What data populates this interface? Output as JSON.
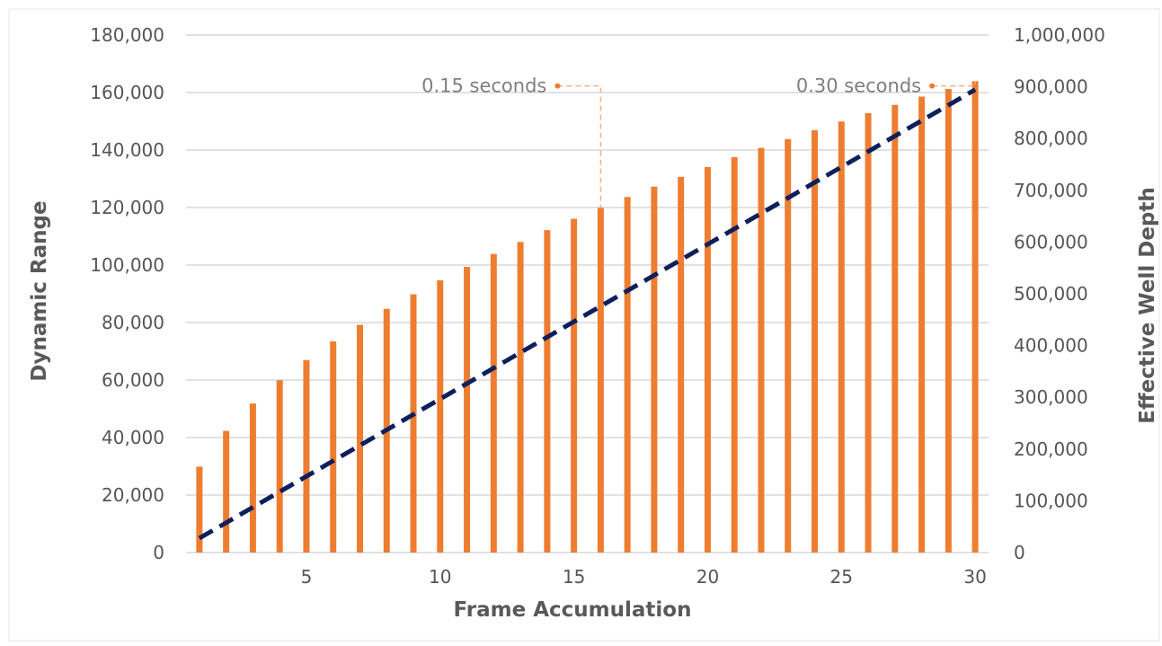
{
  "chart_data": {
    "type": "bar",
    "xlabel": "Frame Accumulation",
    "ylabel": "Dynamic Range",
    "y2label": "Effective Well Depth",
    "xlim": [
      0.5,
      30.5
    ],
    "ylim": [
      0,
      180000
    ],
    "y2lim": [
      0,
      1000000
    ],
    "x_ticks": [
      5,
      10,
      15,
      20,
      25,
      30
    ],
    "x_tick_labels": [
      "5",
      "10",
      "15",
      "20",
      "25",
      "30"
    ],
    "y_ticks": [
      0,
      20000,
      40000,
      60000,
      80000,
      100000,
      120000,
      140000,
      160000,
      180000
    ],
    "y_tick_labels": [
      "0",
      "20,000",
      "40,000",
      "60,000",
      "80,000",
      "100,000",
      "120,000",
      "140,000",
      "160,000",
      "180,000"
    ],
    "y2_ticks": [
      0,
      100000,
      200000,
      300000,
      400000,
      500000,
      600000,
      700000,
      800000,
      900000,
      1000000
    ],
    "y2_tick_labels": [
      "0",
      "100,000",
      "200,000",
      "300,000",
      "400,000",
      "500,000",
      "600,000",
      "700,000",
      "800,000",
      "900,000",
      "1,000,000"
    ],
    "grid": true,
    "colors": {
      "bars": "#ed7d31",
      "line": "#0d1f5c",
      "grid": "#d0d0d0",
      "annotation": "#f4b183"
    },
    "bar_series": {
      "axis": "right",
      "x": [
        1,
        2,
        3,
        4,
        5,
        6,
        7,
        8,
        9,
        10,
        11,
        12,
        13,
        14,
        15,
        16,
        17,
        18,
        19,
        20,
        21,
        22,
        23,
        24,
        25,
        26,
        27,
        28,
        29,
        30
      ],
      "values": [
        166000,
        235000,
        288000,
        333000,
        372000,
        408000,
        440000,
        471000,
        499000,
        526000,
        552000,
        577000,
        600000,
        623000,
        645000,
        666000,
        687000,
        707000,
        726000,
        745000,
        764000,
        782000,
        799000,
        816000,
        833000,
        849000,
        865000,
        881000,
        896000,
        911000
      ]
    },
    "line_series": {
      "axis": "left",
      "style": "dashed",
      "x": [
        1,
        30
      ],
      "values": [
        5000,
        161000
      ]
    },
    "annotations": [
      {
        "text": "0.15 seconds",
        "x": 16,
        "y2": 900000
      },
      {
        "text": "0.30 seconds",
        "x": 30,
        "y2": 900000
      }
    ]
  }
}
